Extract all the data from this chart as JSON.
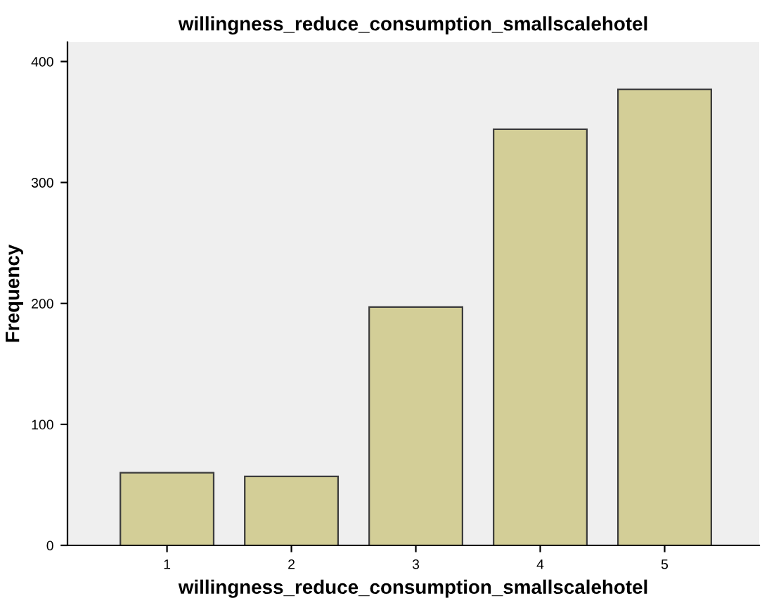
{
  "chart_data": {
    "type": "bar",
    "title": "willingness_reduce_consumption_smallscalehotel",
    "xlabel": "willingness_reduce_consumption_smallscalehotel",
    "ylabel": "Frequency",
    "categories": [
      "1",
      "2",
      "3",
      "4",
      "5"
    ],
    "values": [
      60,
      57,
      197,
      344,
      377
    ],
    "color": "#d3ce97",
    "ylim": [
      0,
      416
    ],
    "yticks": [
      0,
      100,
      200,
      300,
      400
    ],
    "grid": false
  }
}
